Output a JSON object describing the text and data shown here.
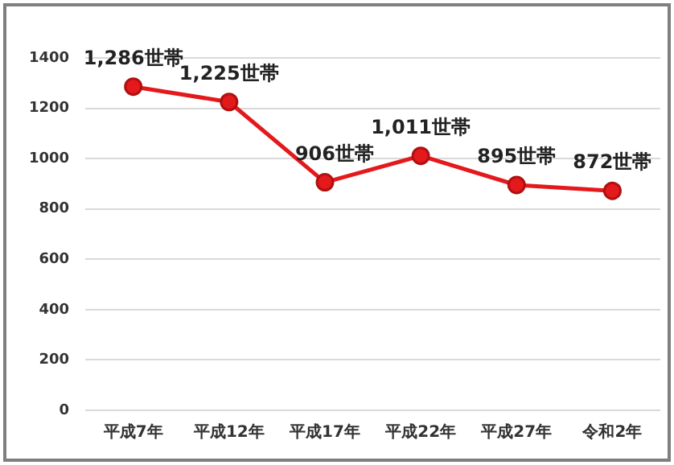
{
  "chart_data": {
    "type": "line",
    "categories": [
      "平成7年",
      "平成12年",
      "平成17年",
      "平成22年",
      "平成27年",
      "令和2年"
    ],
    "series": [
      {
        "color": "#e3191c",
        "values": [
          1286,
          1225,
          906,
          1011,
          895,
          872
        ],
        "value_labels": [
          "1,286世帯",
          "1,225世帯",
          "906世帯",
          "1,011世帯",
          "895世帯",
          "872世帯"
        ]
      }
    ],
    "ylim": [
      0,
      1400
    ],
    "yticks": [
      0,
      200,
      400,
      600,
      800,
      1000,
      1200,
      1400
    ],
    "grid": "y",
    "legend": false,
    "marker": "circle",
    "line_style": "solid"
  }
}
